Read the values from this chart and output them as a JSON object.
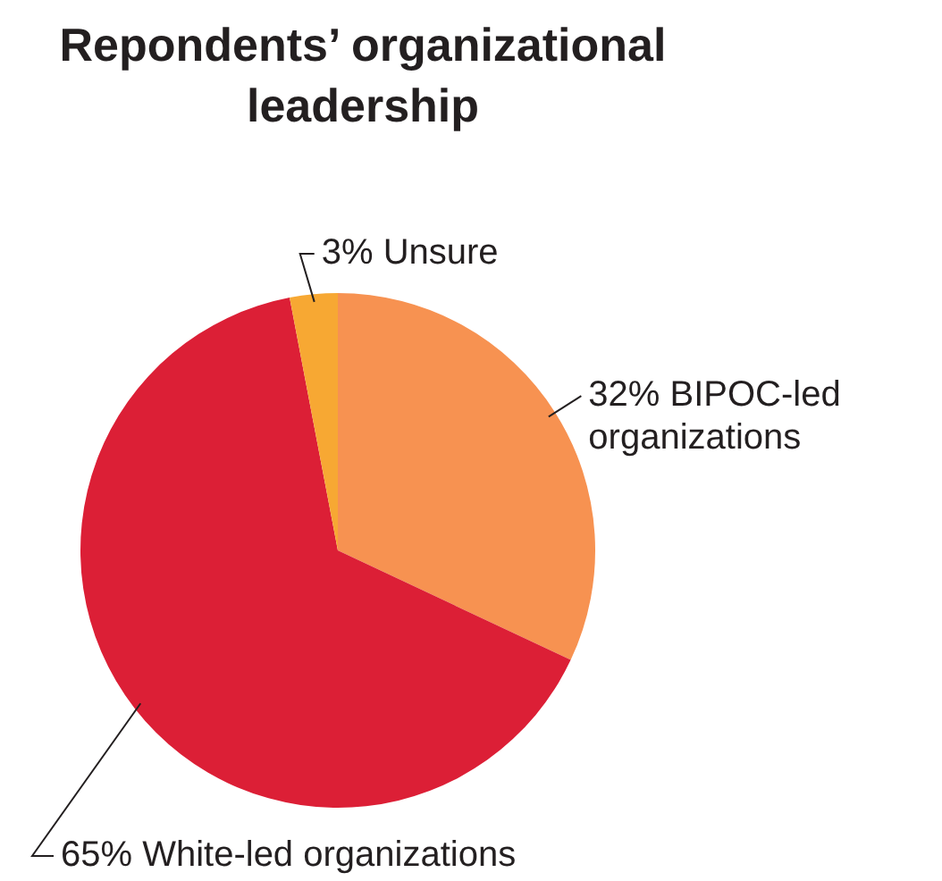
{
  "chart_data": {
    "type": "pie",
    "title": "Repondents’ organizational leadership",
    "categories": [
      "BIPOC-led organizations",
      "White-led organizations",
      "Unsure"
    ],
    "values": [
      32,
      65,
      3
    ],
    "value_labels": [
      "32%",
      "65%",
      "3%"
    ],
    "colors": [
      "#f79251",
      "#dc1f36",
      "#f7a833"
    ],
    "legend": false
  }
}
